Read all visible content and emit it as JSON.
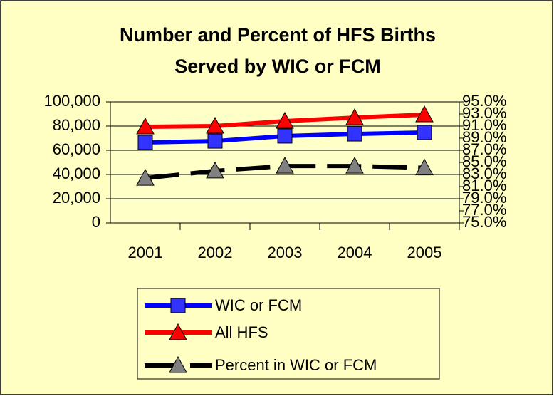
{
  "chart_data": {
    "type": "line",
    "title": [
      "Number and Percent of HFS Births",
      "Served by WIC or FCM"
    ],
    "categories": [
      "2001",
      "2002",
      "2003",
      "2004",
      "2005"
    ],
    "series": [
      {
        "name": "WIC or FCM",
        "color": "#0000ff",
        "marker": "square",
        "marker_color": "#3333ff",
        "line_style": "solid",
        "values": [
          66500,
          67600,
          71800,
          73500,
          74700
        ]
      },
      {
        "name": "All HFS",
        "color": "#ff0000",
        "marker": "triangle",
        "marker_color": "#ff0000",
        "line_style": "solid",
        "values": [
          79400,
          80000,
          84100,
          87000,
          89400
        ]
      },
      {
        "name": "Percent in WIC or FCM",
        "color": "#000000",
        "marker": "triangle",
        "marker_color": "#808080",
        "line_style": "dashed",
        "axis": "y2",
        "values": [
          82.4,
          83.6,
          84.4,
          84.4,
          84.1
        ]
      }
    ],
    "ylim": [
      0,
      100000
    ],
    "yticks": [
      0,
      {
        "value": 20000,
        "label": "20,000"
      },
      {
        "value": 40000,
        "label": "40,000"
      },
      {
        "value": 60000,
        "label": "60,000"
      },
      {
        "value": 80000,
        "label": "80,000"
      },
      {
        "value": 100000,
        "label": "100,000"
      }
    ],
    "y2lim": [
      75,
      95
    ],
    "y2ticks": [
      {
        "value": 75,
        "label": "75.0%"
      },
      {
        "value": 77,
        "label": "77.0%"
      },
      {
        "value": 79,
        "label": "79.0%"
      },
      {
        "value": 81,
        "label": "81.0%"
      },
      {
        "value": 83,
        "label": "83.0%"
      },
      {
        "value": 85,
        "label": "85.0%"
      },
      {
        "value": 87,
        "label": "87.0%"
      },
      {
        "value": 89,
        "label": "89.0%"
      },
      {
        "value": 91,
        "label": "91.0%"
      },
      {
        "value": 93,
        "label": "93.0%"
      },
      {
        "value": 95,
        "label": "95.0%"
      }
    ],
    "grid": true,
    "legend": "bottom"
  }
}
